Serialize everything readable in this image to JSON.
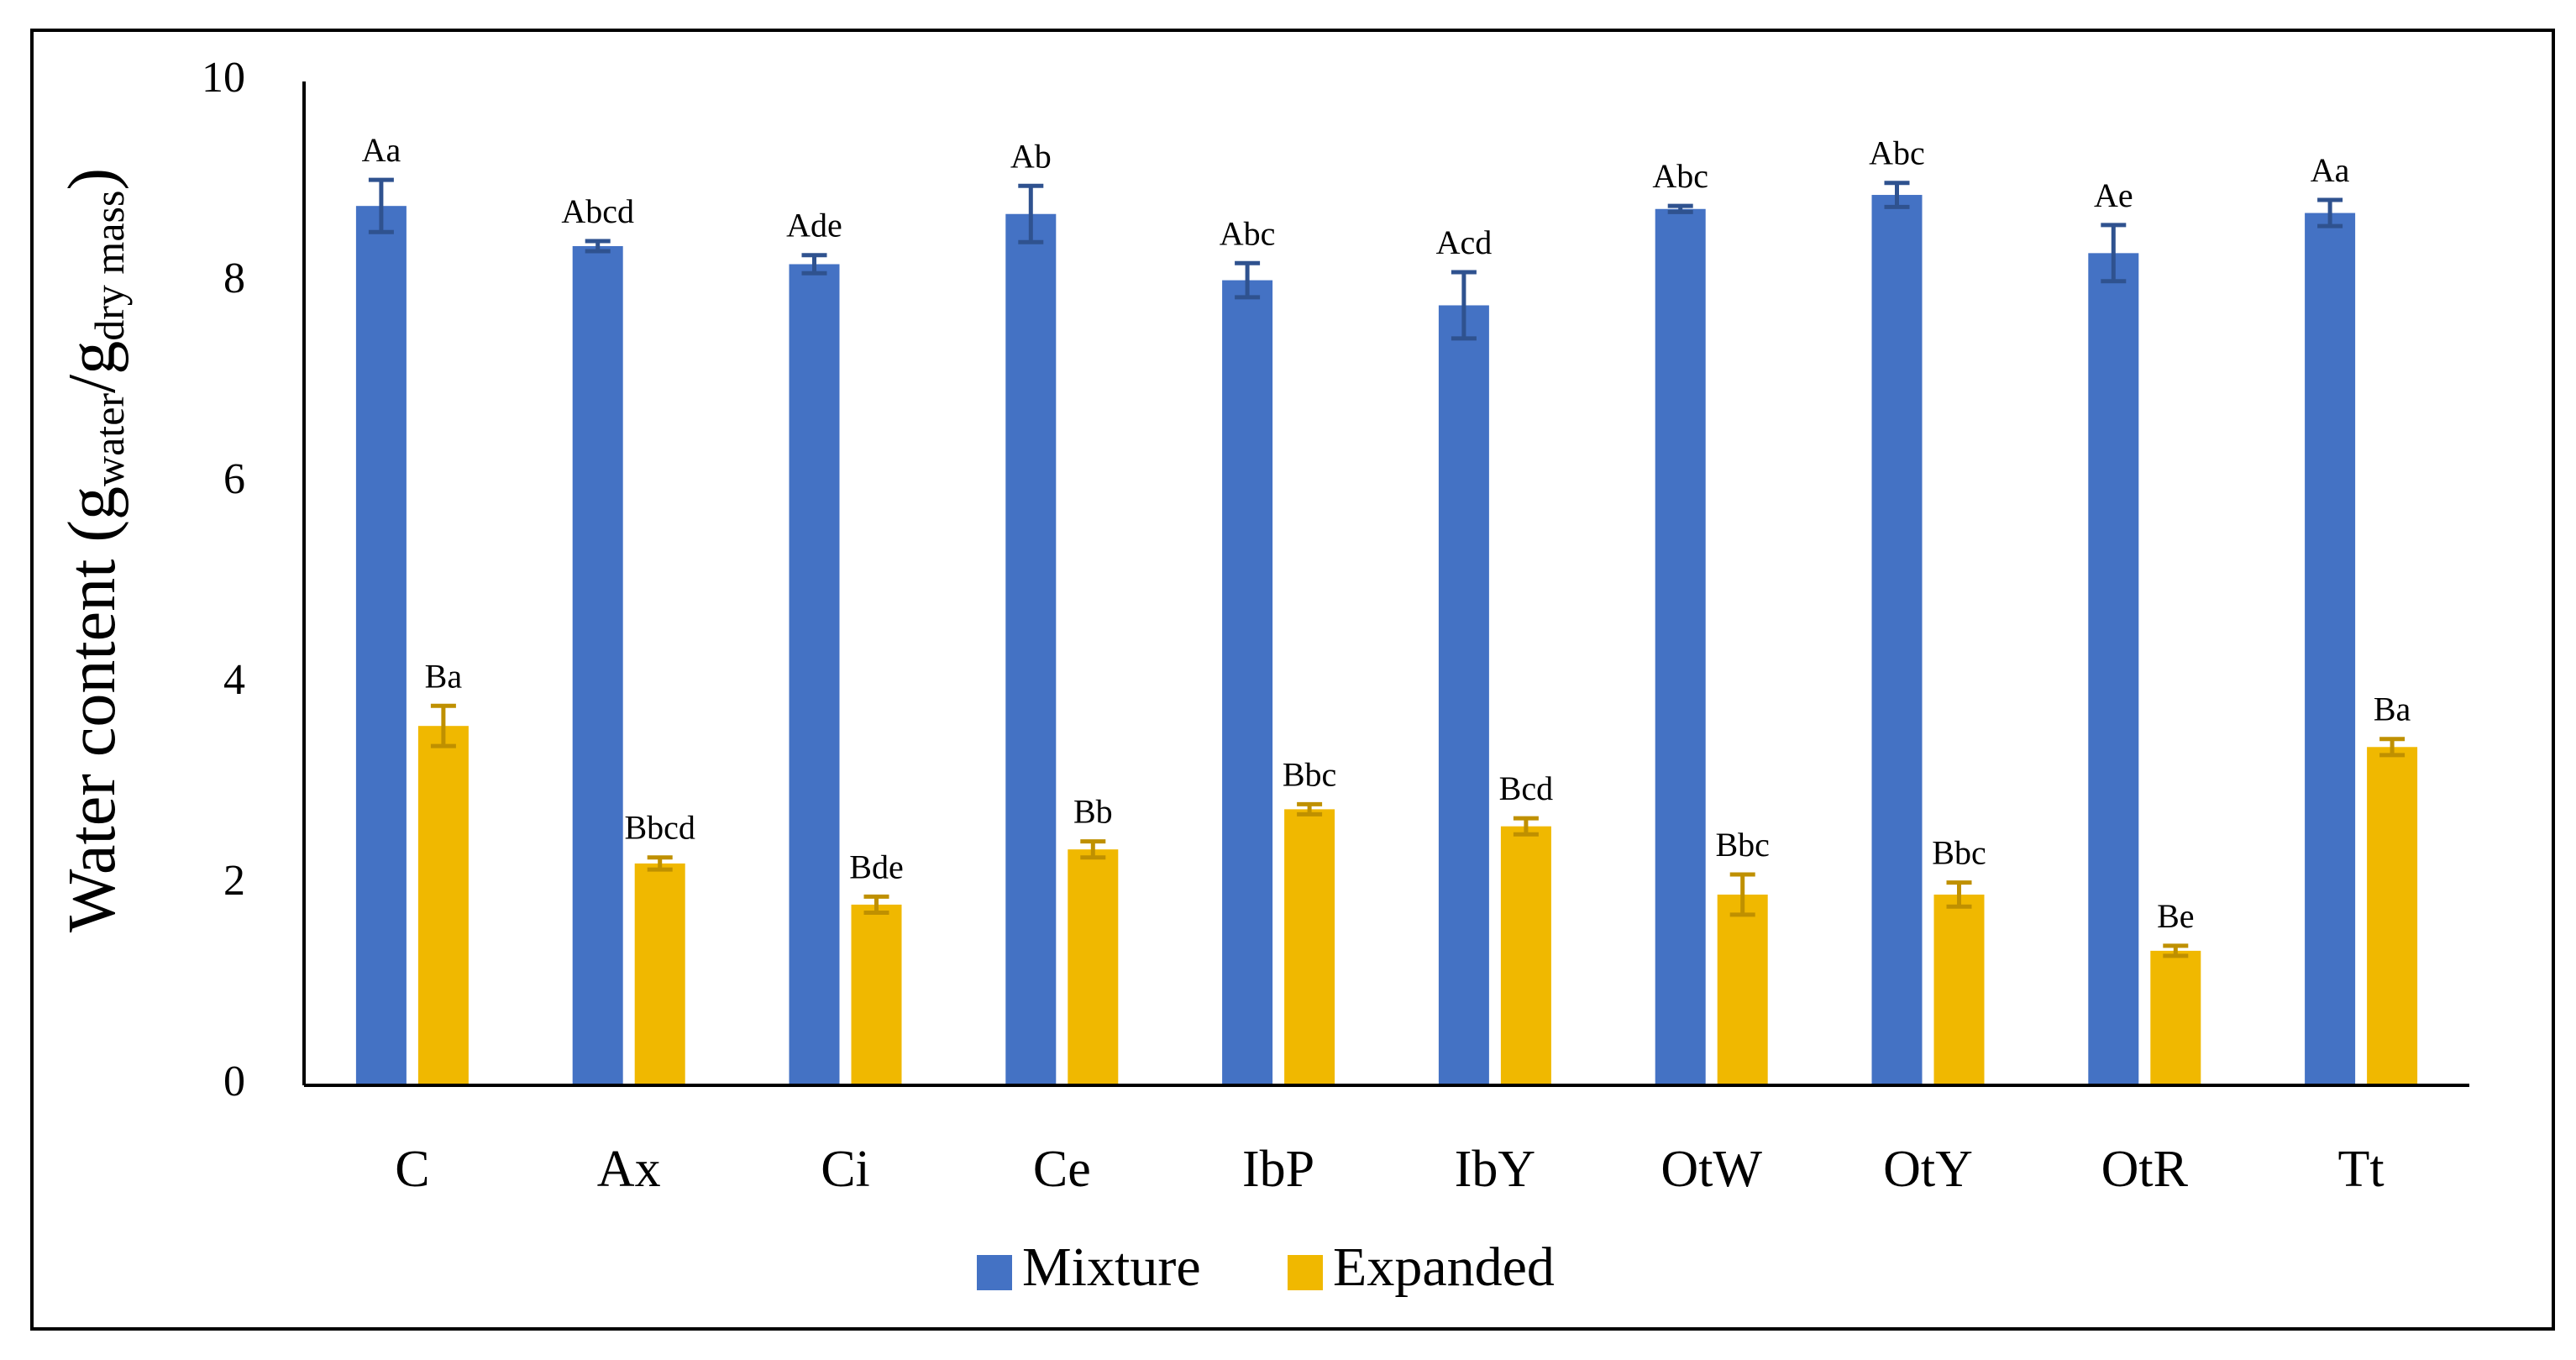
{
  "chart_data": {
    "type": "bar",
    "title": "",
    "xlabel": "",
    "ylabel": {
      "prefix": "Water content (g",
      "sub1": "water",
      "slash": "/g",
      "sub2": "dry mass",
      "suffix": ")"
    },
    "ylim": [
      0,
      10
    ],
    "yticks": [
      "0",
      "2",
      "4",
      "6",
      "8",
      "10"
    ],
    "grid": false,
    "legend_position": "bottom",
    "categories": [
      "C",
      "Ax",
      "Ci",
      "Ce",
      "IbP",
      "IbY",
      "OtW",
      "OtY",
      "OtR",
      "Tt"
    ],
    "series": [
      {
        "name": "Mixture",
        "color": "#4472C4",
        "error_color": "#2F528F",
        "values": [
          8.76,
          8.36,
          8.18,
          8.68,
          8.02,
          7.77,
          8.73,
          8.87,
          8.29,
          8.69
        ],
        "errors": [
          0.26,
          0.05,
          0.09,
          0.28,
          0.17,
          0.33,
          0.03,
          0.12,
          0.28,
          0.13
        ],
        "labels": [
          "Aa",
          "Abcd",
          "Ade",
          "Ab",
          "Abc",
          "Acd",
          "Abc",
          "Abc",
          "Ae",
          "Aa"
        ]
      },
      {
        "name": "Expanded",
        "color": "#F0B800",
        "error_color": "#BF9000",
        "values": [
          3.58,
          2.21,
          1.8,
          2.35,
          2.75,
          2.58,
          1.9,
          1.9,
          1.34,
          3.37
        ],
        "errors": [
          0.2,
          0.06,
          0.08,
          0.08,
          0.05,
          0.08,
          0.2,
          0.12,
          0.05,
          0.08
        ],
        "labels": [
          "Ba",
          "Bbcd",
          "Bde",
          "Bb",
          "Bbc",
          "Bcd",
          "Bbc",
          "Bbc",
          "Be",
          "Ba"
        ]
      }
    ]
  }
}
